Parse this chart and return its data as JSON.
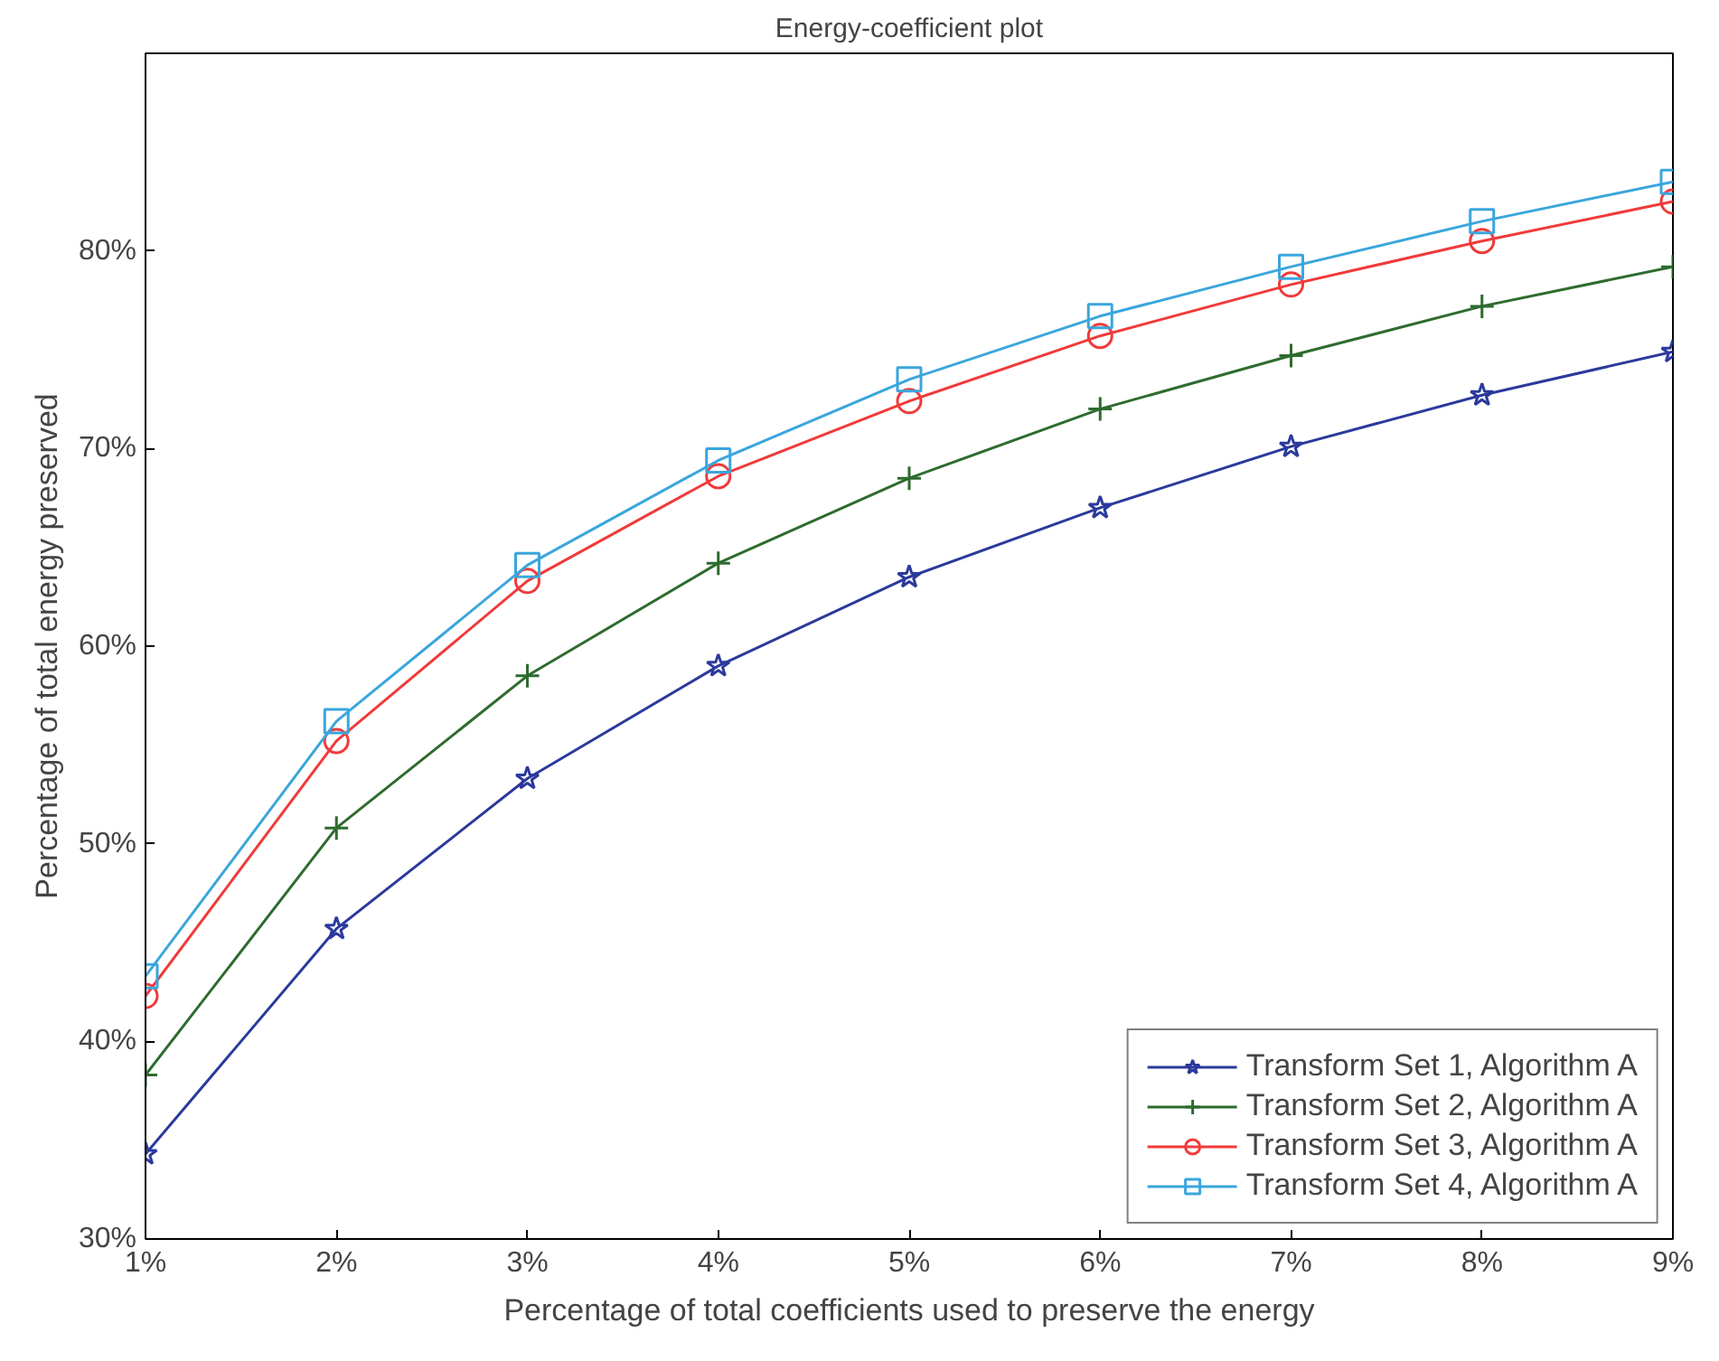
{
  "chart_data": {
    "type": "line",
    "title": "Energy-coefficient plot",
    "xlabel": "Percentage of total coefficients used to preserve the energy",
    "ylabel": "Percentage of total energy preserved",
    "x": [
      1,
      2,
      3,
      4,
      5,
      6,
      7,
      8,
      9
    ],
    "xlim": [
      1,
      9
    ],
    "xticks": [
      {
        "value": 1,
        "label": "1%"
      },
      {
        "value": 2,
        "label": "2%"
      },
      {
        "value": 3,
        "label": "3%"
      },
      {
        "value": 4,
        "label": "4%"
      },
      {
        "value": 5,
        "label": "5%"
      },
      {
        "value": 6,
        "label": "6%"
      },
      {
        "value": 7,
        "label": "7%"
      },
      {
        "value": 8,
        "label": "8%"
      },
      {
        "value": 9,
        "label": "9%"
      }
    ],
    "ylim": [
      30,
      90
    ],
    "yticks": [
      {
        "value": 30,
        "label": "30%"
      },
      {
        "value": 40,
        "label": "40%"
      },
      {
        "value": 50,
        "label": "50%"
      },
      {
        "value": 60,
        "label": "60%"
      },
      {
        "value": 70,
        "label": "70%"
      },
      {
        "value": 80,
        "label": "80%"
      }
    ],
    "grid": false,
    "legend": "bottom right",
    "line_style": "solid",
    "series": [
      {
        "name": "Transform Set 1, Algorithm A",
        "color": "#2b3a9b",
        "marker": "star",
        "values": [
          34.3,
          45.7,
          53.3,
          59.0,
          63.5,
          67.0,
          70.1,
          72.7,
          74.9
        ]
      },
      {
        "name": "Transform Set 2, Algorithm A",
        "color": "#2e6b2e",
        "marker": "cross",
        "values": [
          38.3,
          50.8,
          58.5,
          64.2,
          68.5,
          72.0,
          74.7,
          77.2,
          79.2
        ]
      },
      {
        "name": "Transform Set 3, Algorithm A",
        "color": "#f03a3a",
        "marker": "circle",
        "values": [
          42.3,
          55.2,
          63.3,
          68.6,
          72.4,
          75.7,
          78.3,
          80.5,
          82.5
        ]
      },
      {
        "name": "Transform Set 4, Algorithm A",
        "color": "#3aa6dc",
        "marker": "square",
        "values": [
          43.3,
          56.2,
          64.1,
          69.4,
          73.5,
          76.7,
          79.2,
          81.5,
          83.5
        ]
      }
    ]
  }
}
